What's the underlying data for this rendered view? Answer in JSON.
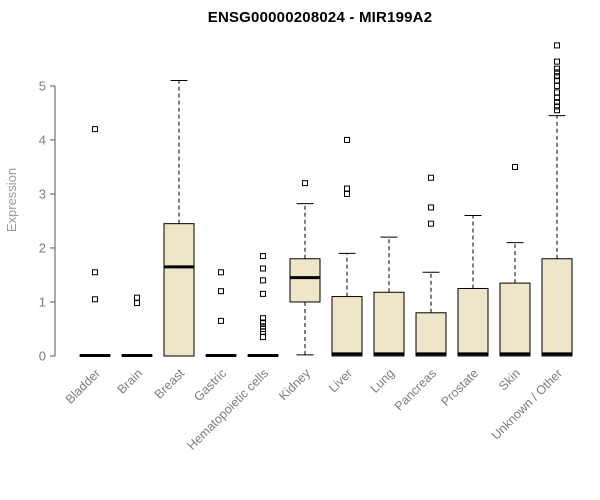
{
  "chart_data": {
    "type": "boxplot",
    "title": "ENSG00000208024 - MIR199A2",
    "ylabel": "Expression",
    "ylim": [
      0,
      5.85
    ],
    "yticks": [
      "0",
      "1",
      "2",
      "3",
      "4",
      "5"
    ],
    "grid": false,
    "legend": "none",
    "colors": {
      "background": "#ffffff",
      "title": "#000000",
      "box_fill": "#EFE5C9",
      "box_stroke": "#000000",
      "median": "#000000",
      "whisker": "#000000",
      "outlier": "#000000",
      "axis": "#555555",
      "tick_labels": "#7d7d7d",
      "axis_title": "#9a9a9a"
    },
    "categories": [
      "Bladder",
      "Brain",
      "Breast",
      "Gastric",
      "Hematopoietic cells",
      "Kidney",
      "Liver",
      "Lung",
      "Pancreas",
      "Prostate",
      "Skin",
      "Unknown / Other"
    ],
    "boxes": [
      {
        "category": "Bladder",
        "low": 0,
        "q1": 0,
        "median": 0.01,
        "q3": 0.02,
        "high": 0.02,
        "outliers": [
          1.05,
          1.55,
          4.2
        ]
      },
      {
        "category": "Brain",
        "low": 0,
        "q1": 0,
        "median": 0.01,
        "q3": 0.02,
        "high": 0.02,
        "outliers": [
          0.98,
          1.08
        ]
      },
      {
        "category": "Breast",
        "low": 0,
        "q1": 0,
        "median": 1.65,
        "q3": 2.45,
        "high": 5.1,
        "outliers": []
      },
      {
        "category": "Gastric",
        "low": 0,
        "q1": 0,
        "median": 0.01,
        "q3": 0.02,
        "high": 0.02,
        "outliers": [
          0.65,
          1.2,
          1.55
        ]
      },
      {
        "category": "Hematopoietic cells",
        "low": 0,
        "q1": 0,
        "median": 0.01,
        "q3": 0.02,
        "high": 0.02,
        "outliers": [
          0.35,
          0.45,
          0.5,
          0.55,
          0.62,
          0.7,
          1.15,
          1.4,
          1.62,
          1.85
        ]
      },
      {
        "category": "Kidney",
        "low": 0.02,
        "q1": 1.0,
        "median": 1.45,
        "q3": 1.8,
        "high": 2.82,
        "outliers": [
          3.2
        ]
      },
      {
        "category": "Liver",
        "low": 0,
        "q1": 0,
        "median": 0.04,
        "q3": 1.1,
        "high": 1.9,
        "outliers": [
          3.0,
          3.1,
          4.0
        ]
      },
      {
        "category": "Lung",
        "low": 0,
        "q1": 0,
        "median": 0.04,
        "q3": 1.18,
        "high": 2.2,
        "outliers": []
      },
      {
        "category": "Pancreas",
        "low": 0,
        "q1": 0,
        "median": 0.04,
        "q3": 0.8,
        "high": 1.55,
        "outliers": [
          2.45,
          2.75,
          3.3
        ]
      },
      {
        "category": "Prostate",
        "low": 0,
        "q1": 0,
        "median": 0.04,
        "q3": 1.25,
        "high": 2.6,
        "outliers": []
      },
      {
        "category": "Skin",
        "low": 0,
        "q1": 0,
        "median": 0.04,
        "q3": 1.35,
        "high": 2.1,
        "outliers": [
          3.5
        ]
      },
      {
        "category": "Unknown / Other",
        "low": 0,
        "q1": 0,
        "median": 0.04,
        "q3": 1.8,
        "high": 4.45,
        "outliers": [
          4.55,
          4.62,
          4.7,
          4.78,
          4.88,
          5.0,
          5.1,
          5.18,
          5.25,
          5.32,
          5.45,
          5.75
        ]
      }
    ]
  }
}
